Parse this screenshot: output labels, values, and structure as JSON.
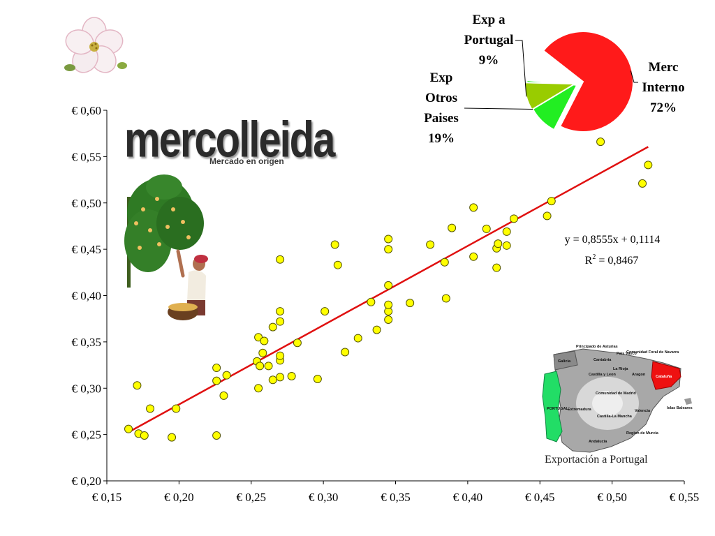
{
  "logo": {
    "name": "mercolleida",
    "tagline": "Mercado en origen"
  },
  "chart_data": [
    {
      "type": "scatter",
      "x_ticks": [
        "€ 0,15",
        "€ 0,20",
        "€ 0,25",
        "€ 0,30",
        "€ 0,35",
        "€ 0,40",
        "€ 0,45",
        "€ 0,50",
        "€ 0,55"
      ],
      "y_ticks": [
        "€ 0,60",
        "€ 0,55",
        "€ 0,50",
        "€ 0,45",
        "€ 0,40",
        "€ 0,35",
        "€ 0,30",
        "€ 0,25",
        "€ 0,20"
      ],
      "xlim": [
        0.15,
        0.55
      ],
      "ylim": [
        0.2,
        0.6
      ],
      "grid": false,
      "marker_color": "#ffff00",
      "trend_color": "#e01010",
      "trendline": {
        "slope": 0.8555,
        "intercept": 0.1114,
        "x_range": [
          0.165,
          0.525
        ],
        "equation": "y = 0,8555x + 0,1114",
        "r2_label": "R",
        "r2_value": " = 0,8467"
      },
      "points": [
        [
          0.165,
          0.256
        ],
        [
          0.172,
          0.251
        ],
        [
          0.176,
          0.249
        ],
        [
          0.171,
          0.303
        ],
        [
          0.18,
          0.278
        ],
        [
          0.195,
          0.247
        ],
        [
          0.198,
          0.278
        ],
        [
          0.226,
          0.249
        ],
        [
          0.226,
          0.308
        ],
        [
          0.226,
          0.322
        ],
        [
          0.231,
          0.292
        ],
        [
          0.233,
          0.314
        ],
        [
          0.254,
          0.329
        ],
        [
          0.255,
          0.355
        ],
        [
          0.255,
          0.3
        ],
        [
          0.256,
          0.324
        ],
        [
          0.258,
          0.338
        ],
        [
          0.259,
          0.351
        ],
        [
          0.262,
          0.324
        ],
        [
          0.265,
          0.366
        ],
        [
          0.265,
          0.309
        ],
        [
          0.27,
          0.312
        ],
        [
          0.27,
          0.33
        ],
        [
          0.27,
          0.335
        ],
        [
          0.27,
          0.372
        ],
        [
          0.27,
          0.383
        ],
        [
          0.27,
          0.439
        ],
        [
          0.278,
          0.313
        ],
        [
          0.282,
          0.349
        ],
        [
          0.296,
          0.31
        ],
        [
          0.301,
          0.383
        ],
        [
          0.308,
          0.455
        ],
        [
          0.31,
          0.433
        ],
        [
          0.315,
          0.339
        ],
        [
          0.324,
          0.354
        ],
        [
          0.333,
          0.393
        ],
        [
          0.337,
          0.363
        ],
        [
          0.345,
          0.374
        ],
        [
          0.345,
          0.383
        ],
        [
          0.345,
          0.39
        ],
        [
          0.345,
          0.411
        ],
        [
          0.345,
          0.45
        ],
        [
          0.345,
          0.461
        ],
        [
          0.36,
          0.392
        ],
        [
          0.374,
          0.455
        ],
        [
          0.384,
          0.436
        ],
        [
          0.385,
          0.397
        ],
        [
          0.389,
          0.473
        ],
        [
          0.404,
          0.442
        ],
        [
          0.404,
          0.495
        ],
        [
          0.413,
          0.472
        ],
        [
          0.42,
          0.43
        ],
        [
          0.42,
          0.451
        ],
        [
          0.421,
          0.456
        ],
        [
          0.427,
          0.454
        ],
        [
          0.427,
          0.469
        ],
        [
          0.432,
          0.483
        ],
        [
          0.455,
          0.486
        ],
        [
          0.458,
          0.502
        ],
        [
          0.492,
          0.566
        ],
        [
          0.521,
          0.521
        ],
        [
          0.525,
          0.541
        ]
      ]
    },
    {
      "type": "pie",
      "slices": [
        {
          "label_lines": [
            "Merc",
            "Interno",
            "72%"
          ],
          "value": 72,
          "color": "#ff1a1a"
        },
        {
          "label_lines": [
            "Exp",
            "Otros",
            "Paises",
            "19%"
          ],
          "value": 19,
          "color": "#22ee22"
        },
        {
          "label_lines": [
            "Exp a",
            "Portugal",
            "9%"
          ],
          "value": 9,
          "color": "#99cc00"
        }
      ]
    }
  ],
  "map": {
    "regions": [
      "Principado de Asturias",
      "Galicia",
      "Cantabria",
      "País Vasco",
      "Comunidad Foral de Navarra",
      "La Rioja",
      "Castilla y Leon",
      "Aragon",
      "Cataluña",
      "Comunidad de Madrid",
      "Extremadura",
      "Castilla-La Mancha",
      "Valencia",
      "Islas Baleares",
      "Region de Murcia",
      "Andalucia",
      "PORTUGAL"
    ],
    "caption": "Exportación a Portugal"
  }
}
